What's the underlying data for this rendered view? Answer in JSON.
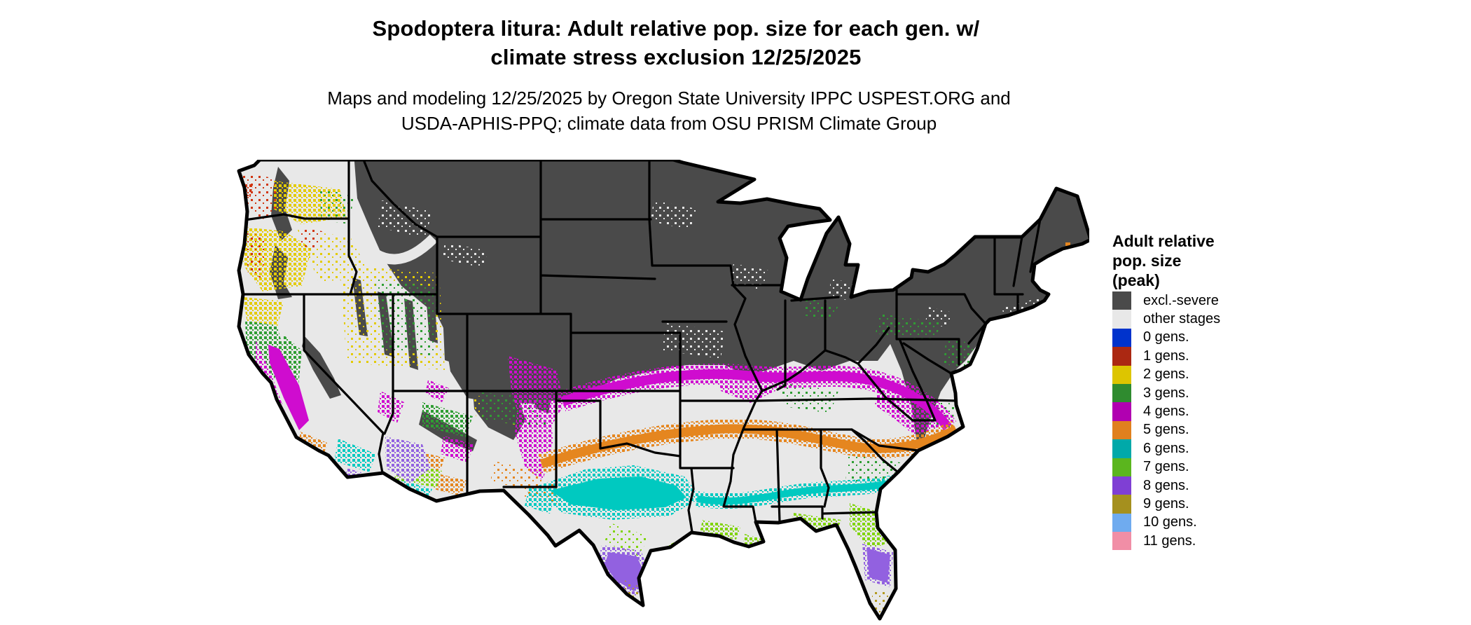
{
  "title": {
    "line1": "Spodoptera litura: Adult relative pop. size for each gen. w/",
    "line2": "climate stress exclusion 12/25/2025"
  },
  "subtitle": {
    "line1": "Maps and modeling 12/25/2025 by Oregon State University IPPC USPEST.ORG and",
    "line2": "USDA-APHIS-PPQ; climate data from OSU PRISM Climate Group"
  },
  "legend": {
    "title_lines": [
      "Adult relative",
      "pop. size",
      "(peak)"
    ],
    "items": [
      {
        "key": "excl",
        "label": "excl.-severe",
        "color": "#4a4a4a"
      },
      {
        "key": "other",
        "label": "other stages",
        "color": "#e8e8e8"
      },
      {
        "key": "gen0",
        "label": "0 gens.",
        "color": "#0033cc"
      },
      {
        "key": "gen1",
        "label": "1 gens.",
        "color": "#ab2812"
      },
      {
        "key": "gen2",
        "label": "2 gens.",
        "color": "#ddc500"
      },
      {
        "key": "gen3",
        "label": "3 gens.",
        "color": "#2f8b2f"
      },
      {
        "key": "gen4",
        "label": "4 gens.",
        "color": "#b100b1"
      },
      {
        "key": "gen5",
        "label": "5 gens.",
        "color": "#e0801e"
      },
      {
        "key": "gen6",
        "label": "6 gens.",
        "color": "#00a9a9"
      },
      {
        "key": "gen7",
        "label": "7 gens.",
        "color": "#5bb61e"
      },
      {
        "key": "gen8",
        "label": "8 gens.",
        "color": "#7f3fd4"
      },
      {
        "key": "gen9",
        "label": "9 gens.",
        "color": "#a5901e"
      },
      {
        "key": "gen10",
        "label": "10 gens.",
        "color": "#6fabef"
      },
      {
        "key": "gen11",
        "label": "11 gens.",
        "color": "#f18ea6"
      }
    ]
  },
  "map": {
    "colors": {
      "border": "#000000",
      "excl": "#4a4a4a",
      "other": "#e8e8e8",
      "gen1": "#d03510",
      "gen2": "#e3cb00",
      "gen3": "#2f9e33",
      "gen4": "#cf0ccf",
      "gen5": "#e5861f",
      "gen6": "#00c9c0",
      "gen7": "#80d40a",
      "gen8": "#9261e0",
      "gen9": "#b39b22"
    }
  }
}
